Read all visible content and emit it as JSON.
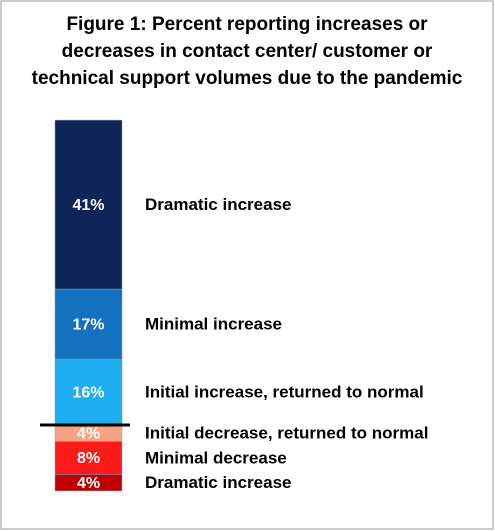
{
  "chart_data": {
    "type": "diverging-stack",
    "title": [
      "Figure 1: Percent reporting increases or",
      "decreases in contact center/ customer or",
      "technical support volumes due to the pandemic"
    ],
    "series": [
      {
        "name": "Dramatic increase",
        "color": "#0f2458",
        "values": [
          41
        ],
        "value_labels": [
          "41%"
        ],
        "stack": "up"
      },
      {
        "name": "Minimal increase",
        "color": "#1371c0",
        "values": [
          17
        ],
        "value_labels": [
          "17%"
        ],
        "stack": "up"
      },
      {
        "name": "Initial increase, returned to normal",
        "color": "#1eaef0",
        "values": [
          16
        ],
        "value_labels": [
          "16%"
        ],
        "stack": "up"
      },
      {
        "name": "Initial decrease, returned to normal",
        "color": "#f7a382",
        "values": [
          4
        ],
        "value_labels": [
          "4%"
        ],
        "stack": "down"
      },
      {
        "name": "Minimal decrease",
        "color": "#ff1a1a",
        "values": [
          8
        ],
        "value_labels": [
          "8%"
        ],
        "stack": "down"
      },
      {
        "name": "Dramatic increase",
        "color": "#c00000",
        "values": [
          4
        ],
        "value_labels": [
          "4%"
        ],
        "stack": "down"
      }
    ]
  }
}
